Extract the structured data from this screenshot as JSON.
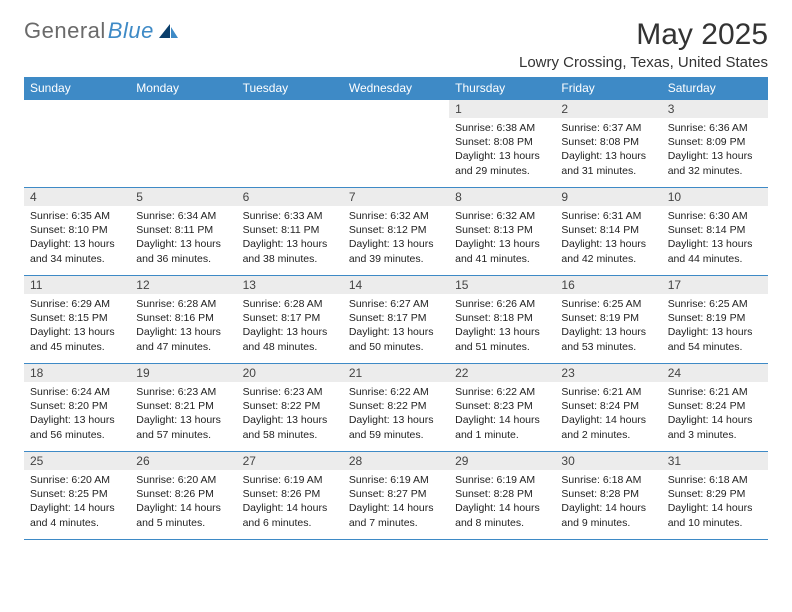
{
  "logo": {
    "text_a": "General",
    "text_b": "Blue"
  },
  "header": {
    "month_title": "May 2025",
    "location": "Lowry Crossing, Texas, United States"
  },
  "calendar": {
    "day_headers": [
      "Sunday",
      "Monday",
      "Tuesday",
      "Wednesday",
      "Thursday",
      "Friday",
      "Saturday"
    ],
    "colors": {
      "header_bg": "#3e8ac6",
      "header_fg": "#ffffff",
      "rule": "#3e8ac6",
      "daynum_bg": "#ececec",
      "text": "#1a1a1a",
      "bg": "#ffffff"
    },
    "weeks": [
      [
        {
          "empty": true
        },
        {
          "empty": true
        },
        {
          "empty": true
        },
        {
          "empty": true
        },
        {
          "day": "1",
          "sunrise": "Sunrise: 6:38 AM",
          "sunset": "Sunset: 8:08 PM",
          "daylight": "Daylight: 13 hours and 29 minutes."
        },
        {
          "day": "2",
          "sunrise": "Sunrise: 6:37 AM",
          "sunset": "Sunset: 8:08 PM",
          "daylight": "Daylight: 13 hours and 31 minutes."
        },
        {
          "day": "3",
          "sunrise": "Sunrise: 6:36 AM",
          "sunset": "Sunset: 8:09 PM",
          "daylight": "Daylight: 13 hours and 32 minutes."
        }
      ],
      [
        {
          "day": "4",
          "sunrise": "Sunrise: 6:35 AM",
          "sunset": "Sunset: 8:10 PM",
          "daylight": "Daylight: 13 hours and 34 minutes."
        },
        {
          "day": "5",
          "sunrise": "Sunrise: 6:34 AM",
          "sunset": "Sunset: 8:11 PM",
          "daylight": "Daylight: 13 hours and 36 minutes."
        },
        {
          "day": "6",
          "sunrise": "Sunrise: 6:33 AM",
          "sunset": "Sunset: 8:11 PM",
          "daylight": "Daylight: 13 hours and 38 minutes."
        },
        {
          "day": "7",
          "sunrise": "Sunrise: 6:32 AM",
          "sunset": "Sunset: 8:12 PM",
          "daylight": "Daylight: 13 hours and 39 minutes."
        },
        {
          "day": "8",
          "sunrise": "Sunrise: 6:32 AM",
          "sunset": "Sunset: 8:13 PM",
          "daylight": "Daylight: 13 hours and 41 minutes."
        },
        {
          "day": "9",
          "sunrise": "Sunrise: 6:31 AM",
          "sunset": "Sunset: 8:14 PM",
          "daylight": "Daylight: 13 hours and 42 minutes."
        },
        {
          "day": "10",
          "sunrise": "Sunrise: 6:30 AM",
          "sunset": "Sunset: 8:14 PM",
          "daylight": "Daylight: 13 hours and 44 minutes."
        }
      ],
      [
        {
          "day": "11",
          "sunrise": "Sunrise: 6:29 AM",
          "sunset": "Sunset: 8:15 PM",
          "daylight": "Daylight: 13 hours and 45 minutes."
        },
        {
          "day": "12",
          "sunrise": "Sunrise: 6:28 AM",
          "sunset": "Sunset: 8:16 PM",
          "daylight": "Daylight: 13 hours and 47 minutes."
        },
        {
          "day": "13",
          "sunrise": "Sunrise: 6:28 AM",
          "sunset": "Sunset: 8:17 PM",
          "daylight": "Daylight: 13 hours and 48 minutes."
        },
        {
          "day": "14",
          "sunrise": "Sunrise: 6:27 AM",
          "sunset": "Sunset: 8:17 PM",
          "daylight": "Daylight: 13 hours and 50 minutes."
        },
        {
          "day": "15",
          "sunrise": "Sunrise: 6:26 AM",
          "sunset": "Sunset: 8:18 PM",
          "daylight": "Daylight: 13 hours and 51 minutes."
        },
        {
          "day": "16",
          "sunrise": "Sunrise: 6:25 AM",
          "sunset": "Sunset: 8:19 PM",
          "daylight": "Daylight: 13 hours and 53 minutes."
        },
        {
          "day": "17",
          "sunrise": "Sunrise: 6:25 AM",
          "sunset": "Sunset: 8:19 PM",
          "daylight": "Daylight: 13 hours and 54 minutes."
        }
      ],
      [
        {
          "day": "18",
          "sunrise": "Sunrise: 6:24 AM",
          "sunset": "Sunset: 8:20 PM",
          "daylight": "Daylight: 13 hours and 56 minutes."
        },
        {
          "day": "19",
          "sunrise": "Sunrise: 6:23 AM",
          "sunset": "Sunset: 8:21 PM",
          "daylight": "Daylight: 13 hours and 57 minutes."
        },
        {
          "day": "20",
          "sunrise": "Sunrise: 6:23 AM",
          "sunset": "Sunset: 8:22 PM",
          "daylight": "Daylight: 13 hours and 58 minutes."
        },
        {
          "day": "21",
          "sunrise": "Sunrise: 6:22 AM",
          "sunset": "Sunset: 8:22 PM",
          "daylight": "Daylight: 13 hours and 59 minutes."
        },
        {
          "day": "22",
          "sunrise": "Sunrise: 6:22 AM",
          "sunset": "Sunset: 8:23 PM",
          "daylight": "Daylight: 14 hours and 1 minute."
        },
        {
          "day": "23",
          "sunrise": "Sunrise: 6:21 AM",
          "sunset": "Sunset: 8:24 PM",
          "daylight": "Daylight: 14 hours and 2 minutes."
        },
        {
          "day": "24",
          "sunrise": "Sunrise: 6:21 AM",
          "sunset": "Sunset: 8:24 PM",
          "daylight": "Daylight: 14 hours and 3 minutes."
        }
      ],
      [
        {
          "day": "25",
          "sunrise": "Sunrise: 6:20 AM",
          "sunset": "Sunset: 8:25 PM",
          "daylight": "Daylight: 14 hours and 4 minutes."
        },
        {
          "day": "26",
          "sunrise": "Sunrise: 6:20 AM",
          "sunset": "Sunset: 8:26 PM",
          "daylight": "Daylight: 14 hours and 5 minutes."
        },
        {
          "day": "27",
          "sunrise": "Sunrise: 6:19 AM",
          "sunset": "Sunset: 8:26 PM",
          "daylight": "Daylight: 14 hours and 6 minutes."
        },
        {
          "day": "28",
          "sunrise": "Sunrise: 6:19 AM",
          "sunset": "Sunset: 8:27 PM",
          "daylight": "Daylight: 14 hours and 7 minutes."
        },
        {
          "day": "29",
          "sunrise": "Sunrise: 6:19 AM",
          "sunset": "Sunset: 8:28 PM",
          "daylight": "Daylight: 14 hours and 8 minutes."
        },
        {
          "day": "30",
          "sunrise": "Sunrise: 6:18 AM",
          "sunset": "Sunset: 8:28 PM",
          "daylight": "Daylight: 14 hours and 9 minutes."
        },
        {
          "day": "31",
          "sunrise": "Sunrise: 6:18 AM",
          "sunset": "Sunset: 8:29 PM",
          "daylight": "Daylight: 14 hours and 10 minutes."
        }
      ]
    ]
  }
}
